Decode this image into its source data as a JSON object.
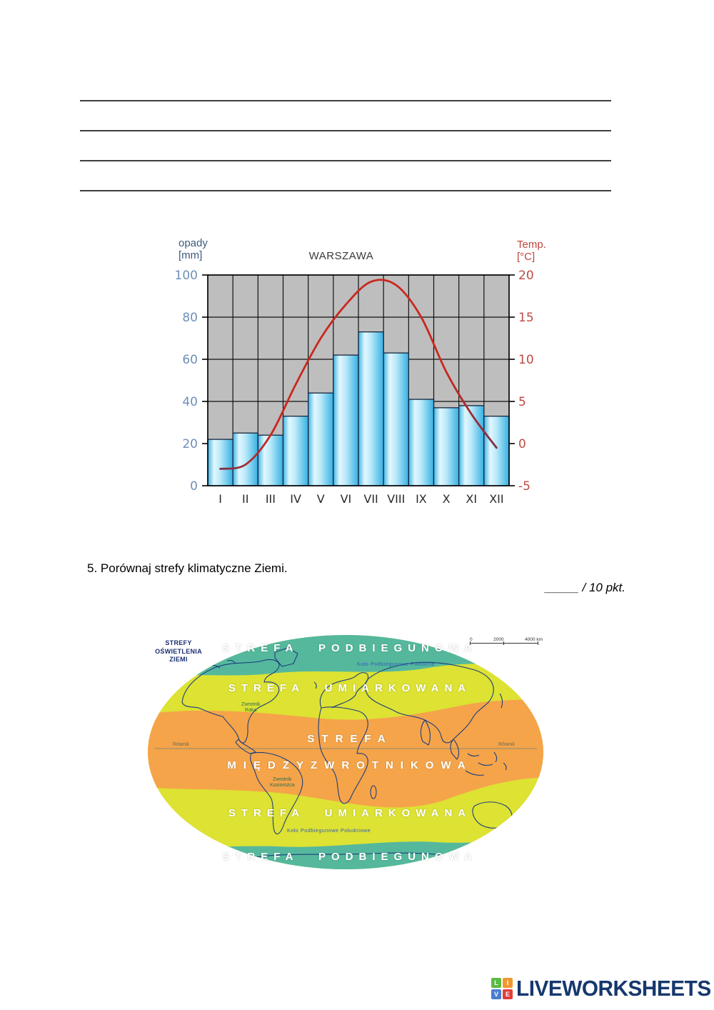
{
  "question": {
    "text": "5. Porównaj strefy klimatyczne Ziemi.",
    "points": "_____ / 10 pkt."
  },
  "chart_data": {
    "type": "bar+line",
    "title": "WARSZAWA",
    "labels": {
      "left1": "opady",
      "left2": "[mm]",
      "right1": "Temp.",
      "right2": "[°C]"
    },
    "categories": [
      "I",
      "II",
      "III",
      "IV",
      "V",
      "VI",
      "VII",
      "VIII",
      "IX",
      "X",
      "XI",
      "XII"
    ],
    "series": [
      {
        "name": "opady [mm]",
        "type": "bar",
        "values": [
          22,
          25,
          24,
          33,
          44,
          62,
          73,
          63,
          41,
          37,
          38,
          33
        ]
      },
      {
        "name": "Temp. [°C]",
        "type": "line",
        "values": [
          -3,
          -2.5,
          1,
          7,
          12.5,
          16.5,
          19.2,
          18.8,
          15,
          8.5,
          3.5,
          -0.5
        ]
      }
    ],
    "precip_axis": {
      "min": 0,
      "max": 100,
      "ticks": [
        0,
        20,
        40,
        60,
        80,
        100
      ]
    },
    "temp_axis": {
      "min": -5,
      "max": 20,
      "ticks": [
        -5,
        0,
        5,
        10,
        15,
        20
      ]
    },
    "grid": true,
    "legend": "none",
    "colors": {
      "plot_bg": "#bebebe",
      "grid": "#111111",
      "bar_main": "#3bb4e5",
      "bar_light": "#e2f7fe",
      "bar_stroke": "#15253e",
      "temp_line": "#c9281e",
      "temp_line_end": "#7a3148",
      "precip_text": "#6f8fb9",
      "precip_label": "#3d5a7e",
      "temp_text": "#bf4a44",
      "month_text": "#2a2a2a"
    }
  },
  "map": {
    "title_lines": [
      "STREFY",
      "OŚWIETLENIA",
      "ZIEMI"
    ],
    "zone_labels": [
      "STREFA PODBIEGUNOWA",
      "STREFA UMIARKOWANA",
      "STREFA",
      "MIĘDZYZWROTNIKOWA",
      "STREFA UMIARKOWANA",
      "STREFA PODBIEGUNOWA"
    ],
    "line_labels": {
      "polar_north": "Koło Podbiegunowe Północne",
      "tropic_cancer_1": "Zwrotnik",
      "tropic_cancer_2": "Raka",
      "equator": "Równik",
      "tropic_capricorn_1": "Zwrotnik",
      "tropic_capricorn_2": "Koziorożca",
      "polar_south": "Koło Podbiegunowe Południowe"
    },
    "scale": [
      "0",
      "2000",
      "4000 km"
    ],
    "colors": {
      "polar": "#55b89d",
      "temperate": "#dde233",
      "tropical": "#f5a44a",
      "coast": "#1d3f7c",
      "equator_line": "#8c8c6e"
    }
  },
  "footer": {
    "logo_text": "LIVEWORKSHEETS",
    "tiles": [
      {
        "letter": "L",
        "color": "#5cb944"
      },
      {
        "letter": "I",
        "color": "#f0972e"
      },
      {
        "letter": "V",
        "color": "#4a7ed0"
      },
      {
        "letter": "E",
        "color": "#e23c3c"
      }
    ]
  }
}
